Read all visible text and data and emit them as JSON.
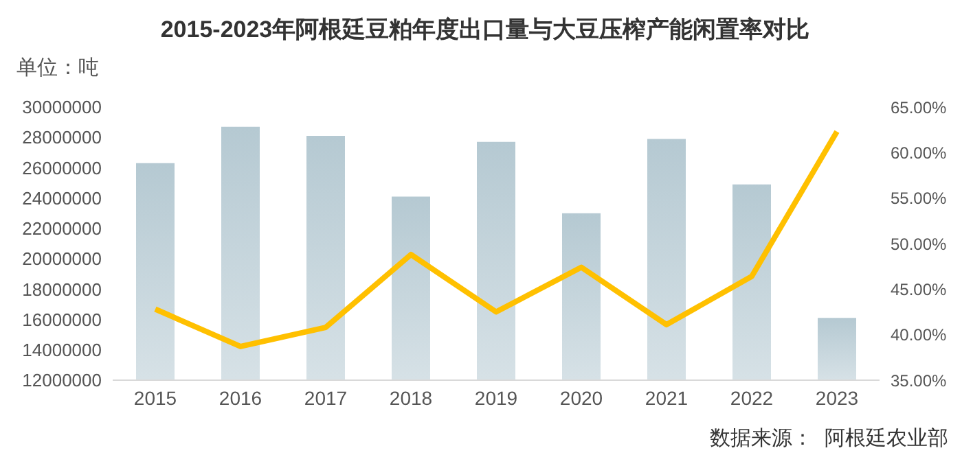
{
  "chart_data": {
    "type": "bar",
    "title": "2015-2023年阿根廷豆粕年度出口量与大豆压榨产能闲置率对比",
    "ylabel": "单位：吨",
    "annotations": [
      "数据来源：  阿根廷农业部"
    ],
    "categories": [
      "2015",
      "2016",
      "2017",
      "2018",
      "2019",
      "2020",
      "2021",
      "2022",
      "2023"
    ],
    "series": [
      {
        "color": "#b5c9d2",
        "values": [
          26300000,
          28700000,
          28100000,
          24100000,
          27700000,
          23000000,
          27900000,
          24900000,
          16100000
        ]
      },
      {
        "type": "line",
        "axis": "y2",
        "color": "#ffc000",
        "values": [
          42.8,
          38.7,
          40.8,
          48.8,
          42.5,
          47.4,
          41.1,
          46.4,
          62.3
        ]
      }
    ],
    "ylim": [
      12000000,
      30000000
    ],
    "yticks": [
      12000000,
      14000000,
      16000000,
      18000000,
      20000000,
      22000000,
      24000000,
      26000000,
      28000000,
      30000000
    ],
    "y2lim": [
      35,
      65
    ],
    "y2ticks": [
      {
        "value": 35,
        "label": "35.00%"
      },
      {
        "value": 40,
        "label": "40.00%"
      },
      {
        "value": 45,
        "label": "45.00%"
      },
      {
        "value": 50,
        "label": "50.00%"
      },
      {
        "value": 55,
        "label": "55.00%"
      },
      {
        "value": 60,
        "label": "60.00%"
      },
      {
        "value": 65,
        "label": "65.00%"
      }
    ],
    "grid": false,
    "legend": false,
    "marker": "none"
  }
}
